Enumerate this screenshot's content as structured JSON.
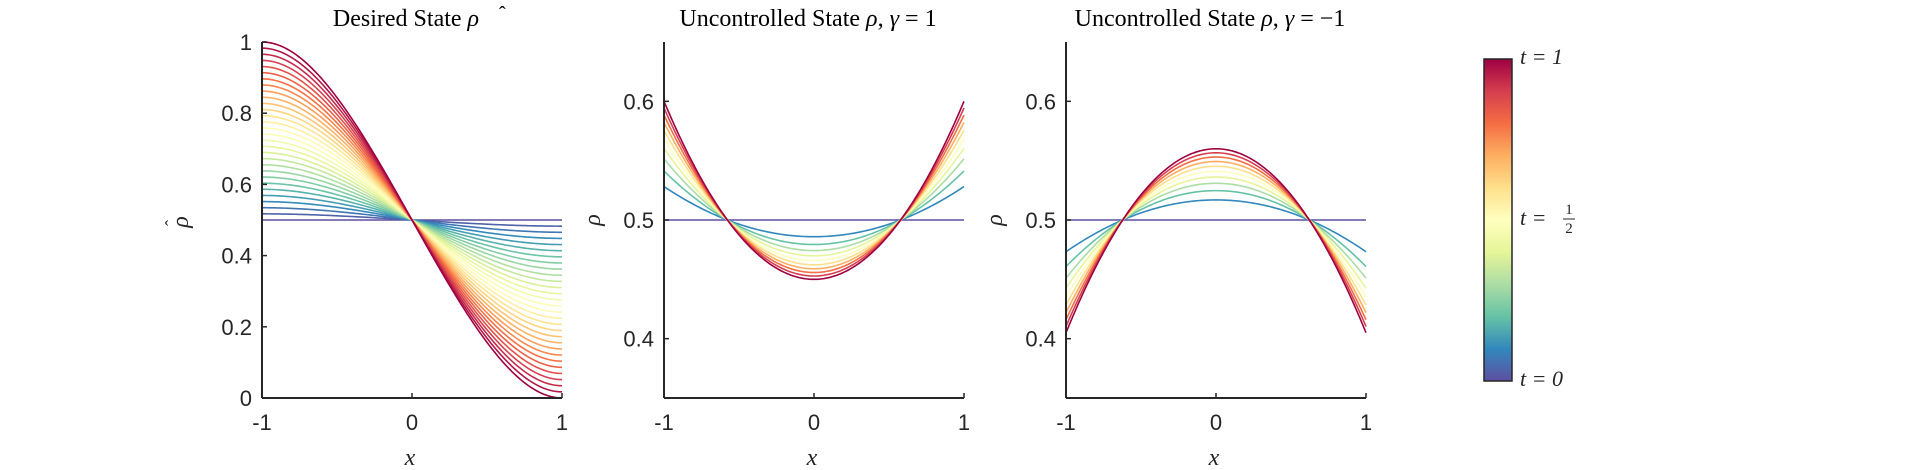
{
  "chart_data": [
    {
      "type": "line",
      "title": "Desired State ρ̂",
      "xlabel": "x",
      "ylabel": "ρ̂",
      "xlim": [
        -1,
        1
      ],
      "ylim": [
        0,
        1
      ],
      "xticks": [
        "-1",
        "0",
        "1"
      ],
      "yticks": [
        "0",
        "0.2",
        "0.4",
        "0.6",
        "0.8",
        "1"
      ],
      "series_description": "family of curves rho_hat(x,t) = 0.5 + 0.5*t*((2 - 3*(x+1) + (x+1)^3/2)... ) shown for 30 times t in [0,1]",
      "n_series": 30,
      "endpoints": {
        "t0": {
          "left": 0.5,
          "right": 0.5
        },
        "t1": {
          "left": 1.0,
          "right": 0.0
        }
      },
      "fixed_point": {
        "x": 0,
        "y": 0.5
      }
    },
    {
      "type": "line",
      "title": "Uncontrolled State ρ, γ = 1",
      "xlabel": "x",
      "ylabel": "ρ",
      "xlim": [
        -1,
        1
      ],
      "ylim": [
        0.35,
        0.65
      ],
      "xticks": [
        "-1",
        "0",
        "1"
      ],
      "yticks": [
        "0.4",
        "0.5",
        "0.6"
      ],
      "n_series": 11,
      "final_curve": {
        "center": 0.45,
        "edge": 0.6
      },
      "crossing_x": 0.577
    },
    {
      "type": "line",
      "title": "Uncontrolled State ρ, γ = −1",
      "xlabel": "x",
      "ylabel": "ρ",
      "xlim": [
        -1,
        1
      ],
      "ylim": [
        0.35,
        0.65
      ],
      "xticks": [
        "-1",
        "0",
        "1"
      ],
      "yticks": [
        "0.4",
        "0.5",
        "0.6"
      ],
      "n_series": 11,
      "final_curve": {
        "center": 0.56,
        "edge": 0.405
      },
      "crossing_x": 0.5
    }
  ],
  "colorbar": {
    "colormap": "spectral",
    "labels": {
      "top": "t = 1",
      "mid_prefix": "t = ",
      "mid_num": "1",
      "mid_den": "2",
      "bottom": "t = 0"
    }
  }
}
